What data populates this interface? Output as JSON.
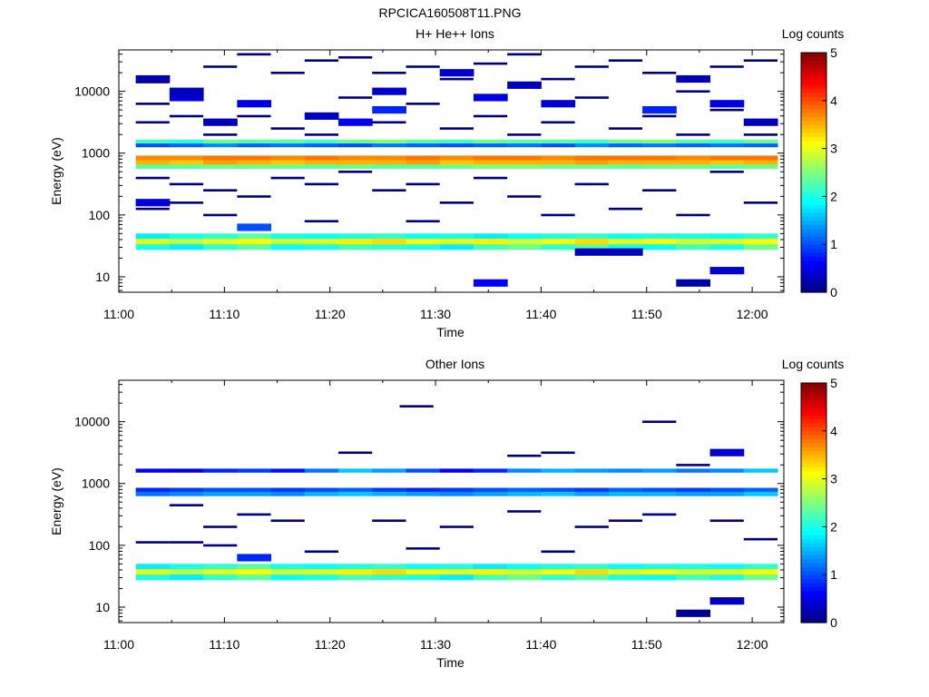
{
  "figure": {
    "title": "RPCICA160508T11.PNG"
  },
  "colormap": [
    "#00007f",
    "#0000ff",
    "#007fff",
    "#00ffff",
    "#7fff7f",
    "#ffff00",
    "#ff7f00",
    "#ff0000",
    "#7f0000"
  ],
  "chart_data": [
    {
      "type": "heatmap",
      "title": "H+ He++ Ions",
      "xlabel": "Time",
      "ylabel": "Energy (eV)",
      "colorbar_label": "Log counts",
      "colorbar_ticks": [
        "0",
        "1",
        "2",
        "3",
        "4",
        "5"
      ],
      "clim": [
        0,
        5
      ],
      "yscale": "log",
      "xlim": [
        0,
        63
      ],
      "ylim_log10": [
        0.75,
        4.67
      ],
      "x_ticks": [
        {
          "v": 0,
          "label": "11:00"
        },
        {
          "v": 10,
          "label": "11:10"
        },
        {
          "v": 20,
          "label": "11:20"
        },
        {
          "v": 30,
          "label": "11:30"
        },
        {
          "v": 40,
          "label": "11:40"
        },
        {
          "v": 50,
          "label": "11:50"
        },
        {
          "v": 60,
          "label": "12:00"
        }
      ],
      "y_ticks": [
        {
          "v": 1,
          "label": "10"
        },
        {
          "v": 2,
          "label": "100"
        },
        {
          "v": 3,
          "label": "1000"
        },
        {
          "v": 4,
          "label": "10000"
        }
      ],
      "time_bins_min": [
        3.2,
        6.4,
        9.6,
        12.8,
        16.0,
        19.2,
        22.4,
        25.6,
        28.8,
        32.0,
        35.2,
        38.4,
        41.6,
        44.8,
        48.0,
        51.2,
        54.4,
        57.6,
        60.8
      ],
      "bands": [
        {
          "lo": 1.44,
          "hi": 1.53,
          "values": [
            2.0,
            1.8,
            2.1,
            2.3,
            1.9,
            2.0,
            2.2,
            2.1,
            2.0,
            1.8,
            2.2,
            2.4,
            2.1,
            2.3,
            2.0,
            1.9,
            2.2,
            2.0,
            2.4
          ]
        },
        {
          "lo": 1.53,
          "hi": 1.62,
          "values": [
            3.0,
            2.8,
            3.0,
            3.1,
            2.9,
            3.0,
            3.2,
            3.3,
            3.1,
            3.0,
            3.2,
            2.9,
            3.1,
            3.3,
            3.0,
            3.1,
            2.9,
            3.0,
            3.1
          ]
        },
        {
          "lo": 1.62,
          "hi": 1.7,
          "values": [
            1.8,
            2.0,
            2.1,
            2.3,
            2.0,
            1.9,
            2.0,
            2.1,
            1.9,
            2.0,
            1.8,
            1.9,
            2.0,
            2.1,
            1.9,
            2.0,
            2.0,
            1.9,
            2.1
          ]
        },
        {
          "lo": 2.75,
          "hi": 2.82,
          "values": [
            2.3,
            2.3,
            2.4,
            2.4,
            2.4,
            2.3,
            2.4,
            2.3,
            2.3,
            2.4,
            2.5,
            2.5,
            2.4,
            2.4,
            2.3,
            2.4,
            2.4,
            2.3,
            2.4
          ]
        },
        {
          "lo": 2.82,
          "hi": 2.89,
          "values": [
            3.5,
            3.4,
            3.6,
            3.5,
            3.4,
            3.5,
            3.5,
            3.5,
            3.6,
            3.4,
            3.5,
            3.5,
            3.5,
            3.6,
            3.5,
            3.5,
            3.5,
            3.4,
            3.5
          ]
        },
        {
          "lo": 2.89,
          "hi": 2.96,
          "values": [
            3.7,
            3.7,
            3.8,
            3.8,
            3.7,
            3.8,
            3.7,
            3.7,
            3.8,
            3.7,
            3.8,
            3.8,
            3.7,
            3.8,
            3.8,
            3.8,
            3.7,
            3.8,
            3.8
          ]
        },
        {
          "lo": 3.1,
          "hi": 3.16,
          "values": [
            1.0,
            1.1,
            1.3,
            1.1,
            1.2,
            1.1,
            1.0,
            1.2,
            1.1,
            1.0,
            1.1,
            1.2,
            1.0,
            1.3,
            1.1,
            1.2,
            1.1,
            1.2,
            1.1
          ]
        },
        {
          "lo": 3.16,
          "hi": 3.22,
          "values": [
            2.2,
            2.1,
            2.4,
            2.3,
            2.3,
            2.2,
            2.4,
            2.5,
            2.3,
            2.2,
            2.4,
            2.3,
            2.3,
            2.2,
            2.4,
            2.5,
            2.3,
            2.2,
            2.4
          ]
        }
      ],
      "spots": [
        {
          "t": 3.2,
          "e": 4.2,
          "v": 0.3
        },
        {
          "t": 3.2,
          "e": 2.2,
          "v": 0.5
        },
        {
          "t": 6.4,
          "e": 3.9,
          "v": 0.4
        },
        {
          "t": 6.4,
          "e": 4.0,
          "v": 0.3
        },
        {
          "t": 9.6,
          "e": 3.5,
          "v": 0.3
        },
        {
          "t": 12.8,
          "e": 1.8,
          "v": 1.0
        },
        {
          "t": 12.8,
          "e": 3.8,
          "v": 0.5
        },
        {
          "t": 19.2,
          "e": 3.6,
          "v": 0.3
        },
        {
          "t": 22.4,
          "e": 3.5,
          "v": 0.6
        },
        {
          "t": 25.6,
          "e": 3.7,
          "v": 0.8
        },
        {
          "t": 25.6,
          "e": 4.0,
          "v": 0.4
        },
        {
          "t": 32.0,
          "e": 4.3,
          "v": 0.4
        },
        {
          "t": 35.2,
          "e": 0.9,
          "v": 0.6
        },
        {
          "t": 35.2,
          "e": 3.9,
          "v": 0.5
        },
        {
          "t": 38.4,
          "e": 4.1,
          "v": 0.3
        },
        {
          "t": 41.6,
          "e": 3.8,
          "v": 0.4
        },
        {
          "t": 44.8,
          "e": 1.4,
          "v": 0.3
        },
        {
          "t": 48.0,
          "e": 1.4,
          "v": 0.3
        },
        {
          "t": 51.2,
          "e": 3.7,
          "v": 0.8
        },
        {
          "t": 54.4,
          "e": 0.9,
          "v": 0.2
        },
        {
          "t": 54.4,
          "e": 4.2,
          "v": 0.3
        },
        {
          "t": 57.6,
          "e": 1.1,
          "v": 0.4
        },
        {
          "t": 57.6,
          "e": 3.8,
          "v": 0.5
        },
        {
          "t": 60.8,
          "e": 3.5,
          "v": 0.3
        }
      ],
      "dashes": [
        {
          "t": 3.2,
          "e": 4.15
        },
        {
          "t": 3.2,
          "e": 3.8
        },
        {
          "t": 3.2,
          "e": 3.5
        },
        {
          "t": 3.2,
          "e": 2.6
        },
        {
          "t": 3.2,
          "e": 2.1
        },
        {
          "t": 6.4,
          "e": 3.6
        },
        {
          "t": 6.4,
          "e": 2.5
        },
        {
          "t": 6.4,
          "e": 2.2
        },
        {
          "t": 9.6,
          "e": 4.4
        },
        {
          "t": 9.6,
          "e": 3.3
        },
        {
          "t": 9.6,
          "e": 2.4
        },
        {
          "t": 9.6,
          "e": 2.0
        },
        {
          "t": 12.8,
          "e": 4.6
        },
        {
          "t": 12.8,
          "e": 3.6
        },
        {
          "t": 12.8,
          "e": 2.3
        },
        {
          "t": 16.0,
          "e": 4.3
        },
        {
          "t": 16.0,
          "e": 3.4
        },
        {
          "t": 16.0,
          "e": 2.6
        },
        {
          "t": 19.2,
          "e": 4.5
        },
        {
          "t": 19.2,
          "e": 3.3
        },
        {
          "t": 19.2,
          "e": 2.5
        },
        {
          "t": 19.2,
          "e": 1.9
        },
        {
          "t": 22.4,
          "e": 4.55
        },
        {
          "t": 22.4,
          "e": 3.9
        },
        {
          "t": 22.4,
          "e": 2.7
        },
        {
          "t": 25.6,
          "e": 4.3
        },
        {
          "t": 25.6,
          "e": 3.5
        },
        {
          "t": 25.6,
          "e": 2.4
        },
        {
          "t": 28.8,
          "e": 4.4
        },
        {
          "t": 28.8,
          "e": 3.8
        },
        {
          "t": 28.8,
          "e": 2.5
        },
        {
          "t": 28.8,
          "e": 1.9
        },
        {
          "t": 32.0,
          "e": 4.2
        },
        {
          "t": 32.0,
          "e": 3.4
        },
        {
          "t": 32.0,
          "e": 2.2
        },
        {
          "t": 35.2,
          "e": 4.45
        },
        {
          "t": 35.2,
          "e": 3.6
        },
        {
          "t": 35.2,
          "e": 2.6
        },
        {
          "t": 38.4,
          "e": 4.6
        },
        {
          "t": 38.4,
          "e": 3.3
        },
        {
          "t": 38.4,
          "e": 2.3
        },
        {
          "t": 41.6,
          "e": 4.2
        },
        {
          "t": 41.6,
          "e": 3.5
        },
        {
          "t": 41.6,
          "e": 2.0
        },
        {
          "t": 44.8,
          "e": 4.4
        },
        {
          "t": 44.8,
          "e": 3.9
        },
        {
          "t": 44.8,
          "e": 2.5
        },
        {
          "t": 48.0,
          "e": 4.5
        },
        {
          "t": 48.0,
          "e": 3.4
        },
        {
          "t": 48.0,
          "e": 2.1
        },
        {
          "t": 51.2,
          "e": 4.3
        },
        {
          "t": 51.2,
          "e": 3.6
        },
        {
          "t": 51.2,
          "e": 2.4
        },
        {
          "t": 54.4,
          "e": 4.0
        },
        {
          "t": 54.4,
          "e": 3.3
        },
        {
          "t": 54.4,
          "e": 2.0
        },
        {
          "t": 57.6,
          "e": 4.4
        },
        {
          "t": 57.6,
          "e": 3.7
        },
        {
          "t": 57.6,
          "e": 2.7
        },
        {
          "t": 60.8,
          "e": 4.5
        },
        {
          "t": 60.8,
          "e": 3.3
        },
        {
          "t": 60.8,
          "e": 2.2
        }
      ]
    },
    {
      "type": "heatmap",
      "title": "Other Ions",
      "xlabel": "Time",
      "ylabel": "Energy (eV)",
      "colorbar_label": "Log counts",
      "colorbar_ticks": [
        "0",
        "1",
        "2",
        "3",
        "4",
        "5"
      ],
      "clim": [
        0,
        5
      ],
      "yscale": "log",
      "xlim": [
        0,
        63
      ],
      "ylim_log10": [
        0.75,
        4.67
      ],
      "x_ticks": [
        {
          "v": 0,
          "label": "11:00"
        },
        {
          "v": 10,
          "label": "11:10"
        },
        {
          "v": 20,
          "label": "11:20"
        },
        {
          "v": 30,
          "label": "11:30"
        },
        {
          "v": 40,
          "label": "11:40"
        },
        {
          "v": 50,
          "label": "11:50"
        },
        {
          "v": 60,
          "label": "12:00"
        }
      ],
      "y_ticks": [
        {
          "v": 1,
          "label": "10"
        },
        {
          "v": 2,
          "label": "100"
        },
        {
          "v": 3,
          "label": "1000"
        },
        {
          "v": 4,
          "label": "10000"
        }
      ],
      "time_bins_min": [
        3.2,
        6.4,
        9.6,
        12.8,
        16.0,
        19.2,
        22.4,
        25.6,
        28.8,
        32.0,
        35.2,
        38.4,
        41.6,
        44.8,
        48.0,
        51.2,
        54.4,
        57.6,
        60.8
      ],
      "bands": [
        {
          "lo": 1.44,
          "hi": 1.53,
          "values": [
            2.0,
            1.8,
            2.1,
            2.3,
            1.9,
            2.0,
            2.2,
            2.1,
            2.0,
            1.8,
            2.2,
            2.4,
            2.1,
            2.3,
            2.0,
            1.9,
            2.2,
            2.0,
            2.4
          ]
        },
        {
          "lo": 1.53,
          "hi": 1.62,
          "values": [
            3.0,
            2.8,
            3.0,
            3.1,
            2.9,
            3.0,
            3.2,
            3.3,
            3.1,
            3.0,
            3.2,
            2.9,
            3.1,
            3.3,
            3.0,
            3.1,
            2.9,
            3.0,
            3.1
          ]
        },
        {
          "lo": 1.62,
          "hi": 1.7,
          "values": [
            1.8,
            2.0,
            2.1,
            2.3,
            2.0,
            1.9,
            2.0,
            2.1,
            1.9,
            2.0,
            1.8,
            1.9,
            2.0,
            2.1,
            1.9,
            2.0,
            2.0,
            1.9,
            2.1
          ]
        },
        {
          "lo": 2.8,
          "hi": 2.87,
          "values": [
            1.2,
            1.3,
            1.4,
            1.4,
            1.3,
            1.5,
            1.6,
            1.5,
            1.4,
            1.3,
            1.4,
            1.5,
            1.6,
            1.4,
            1.5,
            1.5,
            1.4,
            1.4,
            1.6
          ]
        },
        {
          "lo": 2.87,
          "hi": 2.93,
          "values": [
            0.8,
            0.9,
            1.0,
            1.0,
            0.9,
            1.0,
            1.1,
            0.9,
            0.8,
            0.9,
            1.0,
            1.1,
            1.0,
            0.9,
            1.1,
            1.0,
            0.9,
            1.0,
            1.1
          ]
        },
        {
          "lo": 3.18,
          "hi": 3.24,
          "values": [
            0.6,
            0.5,
            0.8,
            0.9,
            0.7,
            1.2,
            1.6,
            1.4,
            1.0,
            0.6,
            0.8,
            1.3,
            1.5,
            1.4,
            1.3,
            1.4,
            1.2,
            1.3,
            1.6
          ]
        }
      ],
      "spots": [
        {
          "t": 12.8,
          "e": 1.8,
          "v": 0.8
        },
        {
          "t": 54.4,
          "e": 0.9,
          "v": 0.1
        },
        {
          "t": 57.6,
          "e": 1.1,
          "v": 0.3
        },
        {
          "t": 57.6,
          "e": 3.5,
          "v": 0.4
        }
      ],
      "dashes": [
        {
          "t": 3.2,
          "e": 2.05
        },
        {
          "t": 6.4,
          "e": 2.05
        },
        {
          "t": 6.4,
          "e": 2.65
        },
        {
          "t": 9.6,
          "e": 2.0
        },
        {
          "t": 9.6,
          "e": 2.3
        },
        {
          "t": 12.8,
          "e": 2.5
        },
        {
          "t": 16.0,
          "e": 2.4
        },
        {
          "t": 19.2,
          "e": 1.9
        },
        {
          "t": 22.4,
          "e": 3.5
        },
        {
          "t": 25.6,
          "e": 2.4
        },
        {
          "t": 28.2,
          "e": 4.25
        },
        {
          "t": 28.8,
          "e": 1.95
        },
        {
          "t": 32.0,
          "e": 2.3
        },
        {
          "t": 38.4,
          "e": 3.45
        },
        {
          "t": 38.4,
          "e": 2.55
        },
        {
          "t": 41.6,
          "e": 3.5
        },
        {
          "t": 41.6,
          "e": 1.9
        },
        {
          "t": 44.8,
          "e": 2.3
        },
        {
          "t": 48.0,
          "e": 2.4
        },
        {
          "t": 51.2,
          "e": 4.0
        },
        {
          "t": 51.2,
          "e": 2.5
        },
        {
          "t": 54.4,
          "e": 3.3
        },
        {
          "t": 57.6,
          "e": 2.4
        },
        {
          "t": 60.8,
          "e": 2.1
        }
      ]
    }
  ]
}
